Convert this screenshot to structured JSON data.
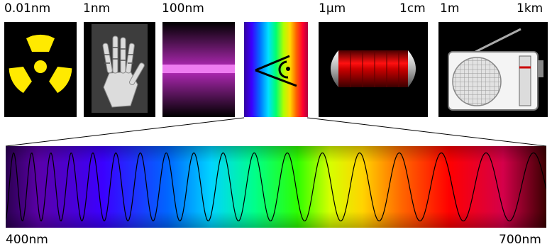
{
  "scale_labels": {
    "gamma": "0.01nm",
    "xray": "1nm",
    "ultraviolet": "100nm",
    "infrared": "1μm",
    "microwave": "1cm",
    "radio_start": "1m",
    "radio_end": "1km"
  },
  "visible_range": {
    "start": "400nm",
    "end": "700nm"
  },
  "colors": {
    "spectrum": [
      "#5a00a8",
      "#3b00ff",
      "#0066ff",
      "#00d4ff",
      "#00ff8a",
      "#2dff00",
      "#d6ff00",
      "#ffd400",
      "#ff6a00",
      "#ff0000",
      "#d4004a",
      "#3a0000"
    ],
    "radiation_symbol": "#ffea00",
    "ultraviolet": "#d036d6",
    "microwave": "#cc0000"
  },
  "icons": [
    "radiation-icon",
    "xray-hand-icon",
    "ultraviolet-lamp-icon",
    "eye-icon",
    "microwave-tube-icon",
    "radio-icon"
  ]
}
